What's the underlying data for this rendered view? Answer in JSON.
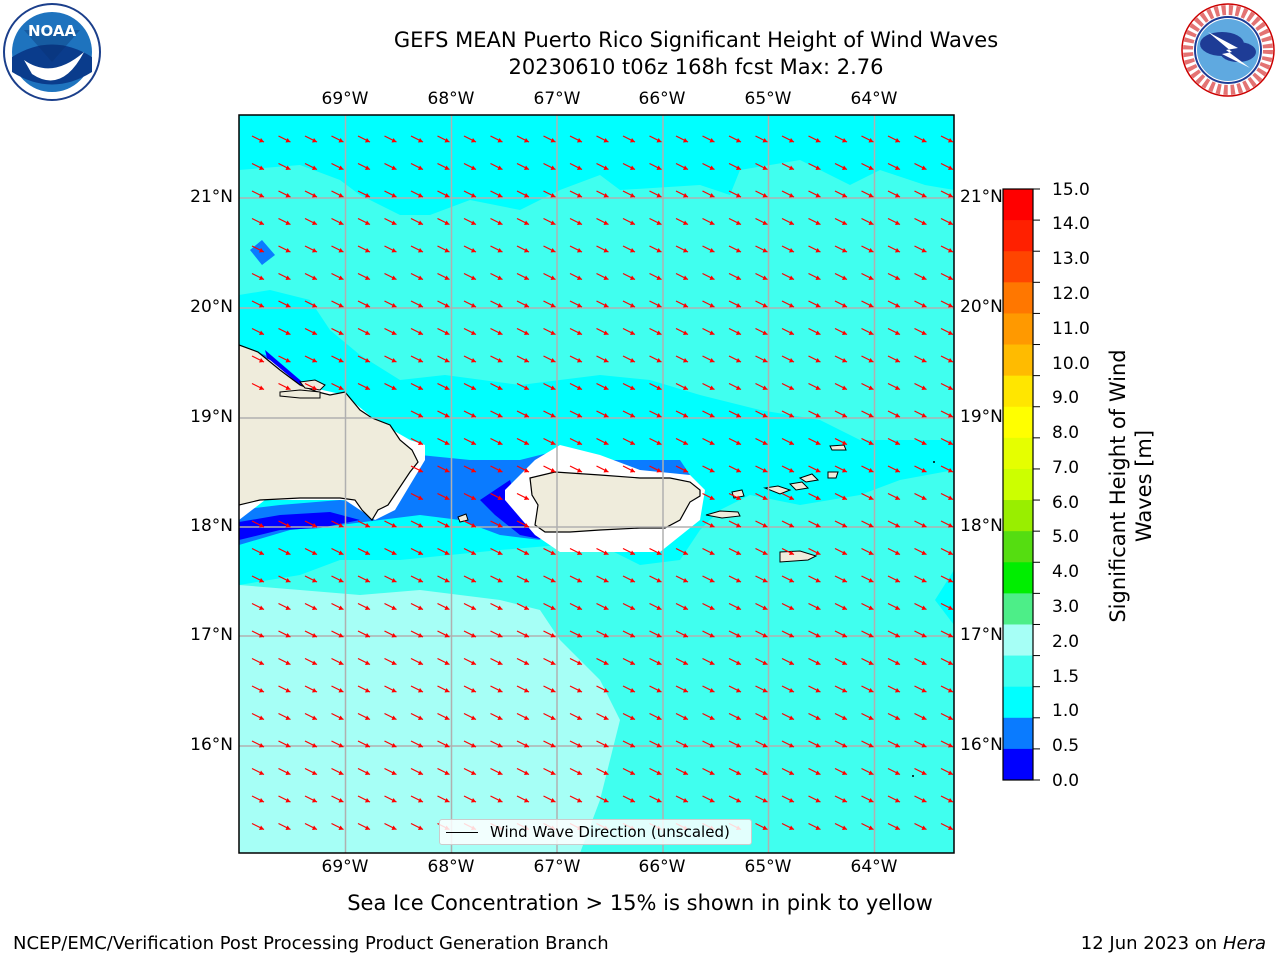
{
  "title": {
    "line1": "GEFS MEAN Puerto Rico Significant Height of Wind Waves",
    "line2": "20230610 t06z 168h fcst   Max: 2.76"
  },
  "logos": {
    "left": {
      "icon": "noaa-logo",
      "text": "NOAA"
    },
    "right": {
      "icon": "nws-logo",
      "text": "NATIONAL WEATHER SERVICE"
    }
  },
  "map": {
    "lon_labels": [
      "69°W",
      "68°W",
      "67°W",
      "66°W",
      "65°W",
      "64°W"
    ],
    "lat_labels": [
      "21°N",
      "20°N",
      "19°N",
      "18°N",
      "17°N",
      "16°N"
    ],
    "lon_range": [
      -70.0,
      -63.25
    ],
    "lat_range": [
      15.0,
      21.75
    ],
    "gridlines": true,
    "arrow_color": "#ff0000",
    "land_color": "#efecdc",
    "water_colors": {
      "0.0-0.5": "#0000ff",
      "0.5-1.0": "#0a7bff",
      "1.0-1.5": "#00ffff",
      "1.5-2.0": "#40ffef",
      "2.0-3.0": "#a6fff6"
    }
  },
  "colorbar": {
    "ticks": [
      "15.0",
      "14.0",
      "13.0",
      "12.0",
      "11.0",
      "10.0",
      "9.0",
      "8.0",
      "7.0",
      "6.0",
      "5.0",
      "4.0",
      "3.0",
      "2.0",
      "1.5",
      "1.0",
      "0.5",
      "0.0"
    ],
    "colors": [
      "#ff0000",
      "#ff2000",
      "#ff4500",
      "#ff7700",
      "#ff9900",
      "#ffbb00",
      "#ffe600",
      "#ffff00",
      "#e5ff00",
      "#ccff00",
      "#99ee00",
      "#55dd11",
      "#00ee00",
      "#4dee88",
      "#a6fff6",
      "#40ffef",
      "#00ffff",
      "#0a7bff",
      "#0000ff"
    ],
    "label": "Significant Height of Wind Waves [m]"
  },
  "legend": {
    "label": "Wind Wave Direction (unscaled)"
  },
  "sea_ice_note": "Sea Ice Concentration > 15% is shown in pink to yellow",
  "footer": {
    "left": "NCEP/EMC/Verification Post Processing Product Generation Branch",
    "right_date": "12 Jun 2023 on",
    "right_machine": "Hera"
  }
}
